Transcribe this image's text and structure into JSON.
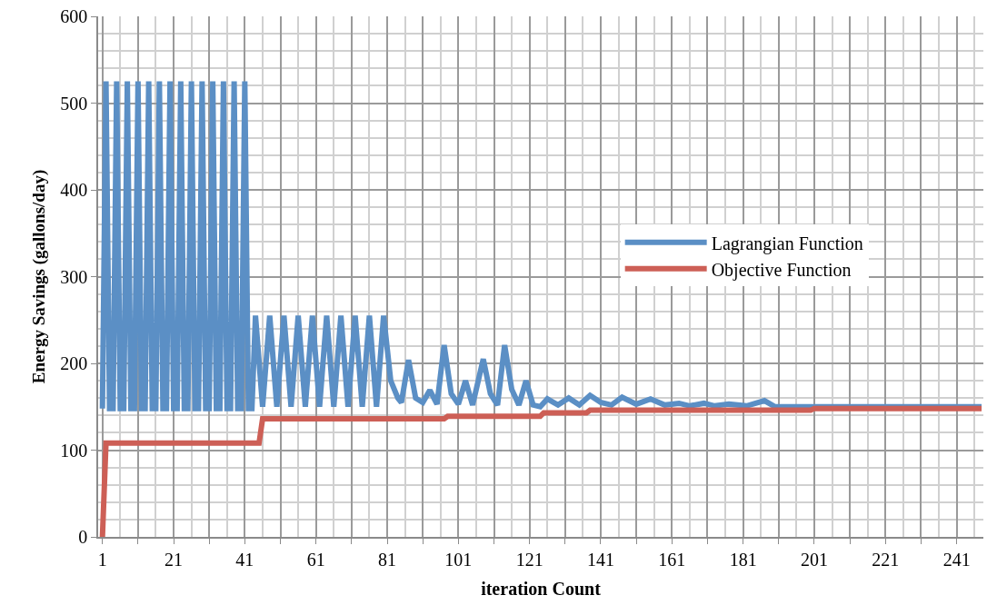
{
  "chart_data": {
    "type": "line",
    "xlabel": "iteration Count",
    "ylabel": "Energy Savings (gallons/day)",
    "xlim": [
      -0.2,
      248.5
    ],
    "ylim": [
      0,
      600
    ],
    "xticks": [
      1,
      {
        "value": 11,
        "label": null
      },
      21,
      {
        "value": 31,
        "label": null
      },
      41,
      {
        "value": 51,
        "label": null
      },
      61,
      {
        "value": 71,
        "label": null
      },
      81,
      {
        "value": 91,
        "label": null
      },
      101,
      {
        "value": 111,
        "label": null
      },
      121,
      {
        "value": 131,
        "label": null
      },
      141,
      {
        "value": 151,
        "label": null
      },
      161,
      {
        "value": 171,
        "label": null
      },
      181,
      {
        "value": 191,
        "label": null
      },
      201,
      {
        "value": 211,
        "label": null
      },
      221,
      {
        "value": 231,
        "label": null
      },
      241
    ],
    "yticks": [
      0,
      100,
      200,
      300,
      400,
      500,
      600
    ],
    "grid": true,
    "legend": "right",
    "marker": "none",
    "line_style": "solid",
    "series": [
      {
        "name": "Lagrangian Function",
        "color": "#5b8fc5",
        "x": [
          1,
          2,
          3,
          4,
          5,
          6,
          7,
          8,
          9,
          10,
          11,
          12,
          13,
          14,
          15,
          16,
          17,
          18,
          19,
          20,
          21,
          22,
          23,
          24,
          25,
          26,
          27,
          28,
          29,
          30,
          31,
          32,
          33,
          34,
          35,
          36,
          37,
          38,
          39,
          40,
          41,
          42,
          43,
          44,
          46,
          48,
          50,
          52,
          54,
          56,
          58,
          60,
          62,
          64,
          66,
          68,
          70,
          72,
          74,
          76,
          78,
          80,
          82,
          84,
          85,
          87,
          89,
          91,
          93,
          95,
          97,
          99,
          101,
          103,
          105,
          108,
          110,
          112,
          114,
          116,
          118,
          120,
          122,
          124,
          126,
          129,
          132,
          135,
          138,
          141,
          144,
          147,
          151,
          155,
          159,
          163,
          166,
          170,
          173,
          177,
          182,
          187,
          190,
          248
        ],
        "values": [
          148,
          525,
          148,
          148,
          525,
          148,
          148,
          525,
          148,
          148,
          525,
          148,
          148,
          525,
          148,
          148,
          525,
          148,
          148,
          525,
          148,
          148,
          525,
          148,
          148,
          525,
          148,
          148,
          525,
          148,
          148,
          525,
          148,
          148,
          525,
          148,
          148,
          525,
          148,
          148,
          525,
          148,
          148,
          255,
          150,
          255,
          150,
          255,
          150,
          255,
          150,
          255,
          150,
          255,
          150,
          255,
          150,
          255,
          150,
          255,
          150,
          255,
          180,
          160,
          155,
          204,
          160,
          155,
          169,
          153,
          221,
          165,
          153,
          180,
          152,
          205,
          165,
          152,
          221,
          170,
          152,
          180,
          152,
          150,
          159,
          152,
          160,
          152,
          163,
          155,
          152,
          161,
          153,
          159,
          152,
          154,
          151,
          154,
          151,
          153,
          151,
          157,
          150,
          150
        ]
      },
      {
        "name": "Objective Function",
        "color": "#cd5f56",
        "x": [
          1,
          2,
          45,
          46,
          97,
          98,
          124,
          125,
          137,
          138,
          200,
          201,
          248
        ],
        "values": [
          0,
          108,
          108,
          136,
          136,
          139,
          139,
          143,
          143,
          146,
          146,
          148,
          148
        ]
      }
    ]
  }
}
